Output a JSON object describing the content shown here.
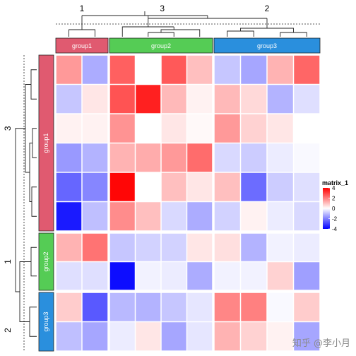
{
  "chart_data": {
    "type": "heatmap",
    "legend": {
      "title": "matrix_1",
      "ticks": [
        4,
        2,
        0,
        -2,
        -4
      ],
      "colors": {
        "high": "#FF0000",
        "mid": "#FFFFFF",
        "low": "#0000FF"
      },
      "range": [
        -4,
        4
      ]
    },
    "column_groups": [
      {
        "label": "group1",
        "color": "#E05A70",
        "cluster_label": "1",
        "n": 2
      },
      {
        "label": "group2",
        "color": "#55CC55",
        "cluster_label": "3",
        "n": 4
      },
      {
        "label": "group3",
        "color": "#2A8FDD",
        "cluster_label": "2",
        "n": 4
      }
    ],
    "row_groups": [
      {
        "label": "group1",
        "color": "#E05A70",
        "cluster_label": "3",
        "n": 6
      },
      {
        "label": "group2",
        "color": "#55CC55",
        "cluster_label": "1",
        "n": 2
      },
      {
        "label": "group3",
        "color": "#2A8FDD",
        "cluster_label": "2",
        "n": 2
      }
    ],
    "values": [
      [
        1.6,
        -1.3,
        2.5,
        0.0,
        2.6,
        1.0,
        -0.9,
        -1.4,
        1.2,
        2.4
      ],
      [
        -0.9,
        0.4,
        2.7,
        3.5,
        1.1,
        0.2,
        1.1,
        0.6,
        -1.2,
        -0.5
      ],
      [
        0.2,
        0.2,
        1.7,
        0.0,
        0.4,
        0.1,
        1.6,
        0.7,
        0.4,
        0.0
      ],
      [
        -1.6,
        -1.2,
        1.2,
        1.3,
        1.6,
        2.3,
        -0.6,
        -0.8,
        -0.3,
        -0.1
      ],
      [
        -2.4,
        -1.9,
        3.9,
        0.0,
        1.0,
        0.4,
        1.0,
        -2.3,
        -0.8,
        -0.5
      ],
      [
        -3.6,
        -1.0,
        1.8,
        1.0,
        -0.6,
        -1.3,
        -0.7,
        0.2,
        -0.3,
        -0.6
      ],
      [
        1.2,
        2.2,
        -0.9,
        -0.7,
        -0.7,
        0.4,
        0.5,
        -1.2,
        -0.2,
        -0.3
      ],
      [
        -0.5,
        -0.5,
        -3.8,
        -0.2,
        -0.3,
        -1.3,
        -0.2,
        -0.2,
        0.7,
        -1.5
      ],
      [
        0.8,
        -2.6,
        -1.1,
        -1.2,
        -0.9,
        -0.4,
        1.9,
        2.0,
        -0.1,
        0.8
      ],
      [
        -1.0,
        -1.4,
        -0.3,
        0.4,
        -1.4,
        -0.4,
        1.2,
        0.7,
        0.2,
        -1.4
      ]
    ]
  },
  "watermark": "知乎 @李小月"
}
